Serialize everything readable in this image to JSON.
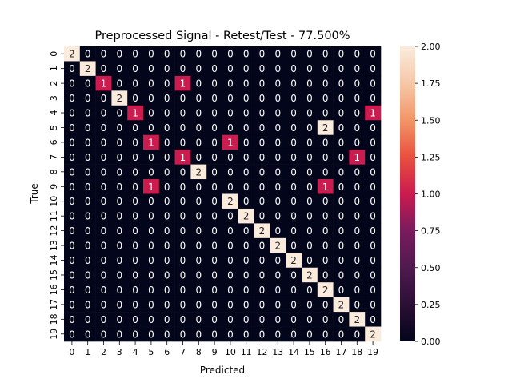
{
  "chart_data": {
    "type": "heatmap",
    "title": "Preprocessed Signal - Retest/Test - 77.500%",
    "xlabel": "Predicted",
    "ylabel": "True",
    "x_categories": [
      "0",
      "1",
      "2",
      "3",
      "4",
      "5",
      "6",
      "7",
      "8",
      "9",
      "10",
      "11",
      "12",
      "13",
      "14",
      "15",
      "16",
      "17",
      "18",
      "19"
    ],
    "y_categories": [
      "0",
      "1",
      "2",
      "3",
      "4",
      "5",
      "6",
      "7",
      "8",
      "9",
      "10",
      "11",
      "12",
      "13",
      "14",
      "15",
      "16",
      "17",
      "18",
      "19"
    ],
    "matrix": [
      [
        2,
        0,
        0,
        0,
        0,
        0,
        0,
        0,
        0,
        0,
        0,
        0,
        0,
        0,
        0,
        0,
        0,
        0,
        0,
        0
      ],
      [
        0,
        2,
        0,
        0,
        0,
        0,
        0,
        0,
        0,
        0,
        0,
        0,
        0,
        0,
        0,
        0,
        0,
        0,
        0,
        0
      ],
      [
        0,
        0,
        1,
        0,
        0,
        0,
        0,
        1,
        0,
        0,
        0,
        0,
        0,
        0,
        0,
        0,
        0,
        0,
        0,
        0
      ],
      [
        0,
        0,
        0,
        2,
        0,
        0,
        0,
        0,
        0,
        0,
        0,
        0,
        0,
        0,
        0,
        0,
        0,
        0,
        0,
        0
      ],
      [
        0,
        0,
        0,
        0,
        1,
        0,
        0,
        0,
        0,
        0,
        0,
        0,
        0,
        0,
        0,
        0,
        0,
        0,
        0,
        1
      ],
      [
        0,
        0,
        0,
        0,
        0,
        0,
        0,
        0,
        0,
        0,
        0,
        0,
        0,
        0,
        0,
        0,
        2,
        0,
        0,
        0
      ],
      [
        0,
        0,
        0,
        0,
        0,
        1,
        0,
        0,
        0,
        0,
        1,
        0,
        0,
        0,
        0,
        0,
        0,
        0,
        0,
        0
      ],
      [
        0,
        0,
        0,
        0,
        0,
        0,
        0,
        1,
        0,
        0,
        0,
        0,
        0,
        0,
        0,
        0,
        0,
        0,
        1,
        0
      ],
      [
        0,
        0,
        0,
        0,
        0,
        0,
        0,
        0,
        2,
        0,
        0,
        0,
        0,
        0,
        0,
        0,
        0,
        0,
        0,
        0
      ],
      [
        0,
        0,
        0,
        0,
        0,
        1,
        0,
        0,
        0,
        0,
        0,
        0,
        0,
        0,
        0,
        0,
        1,
        0,
        0,
        0
      ],
      [
        0,
        0,
        0,
        0,
        0,
        0,
        0,
        0,
        0,
        0,
        2,
        0,
        0,
        0,
        0,
        0,
        0,
        0,
        0,
        0
      ],
      [
        0,
        0,
        0,
        0,
        0,
        0,
        0,
        0,
        0,
        0,
        0,
        2,
        0,
        0,
        0,
        0,
        0,
        0,
        0,
        0
      ],
      [
        0,
        0,
        0,
        0,
        0,
        0,
        0,
        0,
        0,
        0,
        0,
        0,
        2,
        0,
        0,
        0,
        0,
        0,
        0,
        0
      ],
      [
        0,
        0,
        0,
        0,
        0,
        0,
        0,
        0,
        0,
        0,
        0,
        0,
        0,
        2,
        0,
        0,
        0,
        0,
        0,
        0
      ],
      [
        0,
        0,
        0,
        0,
        0,
        0,
        0,
        0,
        0,
        0,
        0,
        0,
        0,
        0,
        2,
        0,
        0,
        0,
        0,
        0
      ],
      [
        0,
        0,
        0,
        0,
        0,
        0,
        0,
        0,
        0,
        0,
        0,
        0,
        0,
        0,
        0,
        2,
        0,
        0,
        0,
        0
      ],
      [
        0,
        0,
        0,
        0,
        0,
        0,
        0,
        0,
        0,
        0,
        0,
        0,
        0,
        0,
        0,
        0,
        2,
        0,
        0,
        0
      ],
      [
        0,
        0,
        0,
        0,
        0,
        0,
        0,
        0,
        0,
        0,
        0,
        0,
        0,
        0,
        0,
        0,
        0,
        2,
        0,
        0
      ],
      [
        0,
        0,
        0,
        0,
        0,
        0,
        0,
        0,
        0,
        0,
        0,
        0,
        0,
        0,
        0,
        0,
        0,
        0,
        2,
        0
      ],
      [
        0,
        0,
        0,
        0,
        0,
        0,
        0,
        0,
        0,
        0,
        0,
        0,
        0,
        0,
        0,
        0,
        0,
        0,
        0,
        2
      ]
    ],
    "vmin": 0,
    "vmax": 2,
    "colorbar_ticks": [
      "0.00",
      "0.25",
      "0.50",
      "0.75",
      "1.00",
      "1.25",
      "1.50",
      "1.75",
      "2.00"
    ],
    "colors": {
      "low": "#03051a",
      "mid": "#cb1b4f",
      "high": "#faebdd"
    },
    "grid": false
  }
}
